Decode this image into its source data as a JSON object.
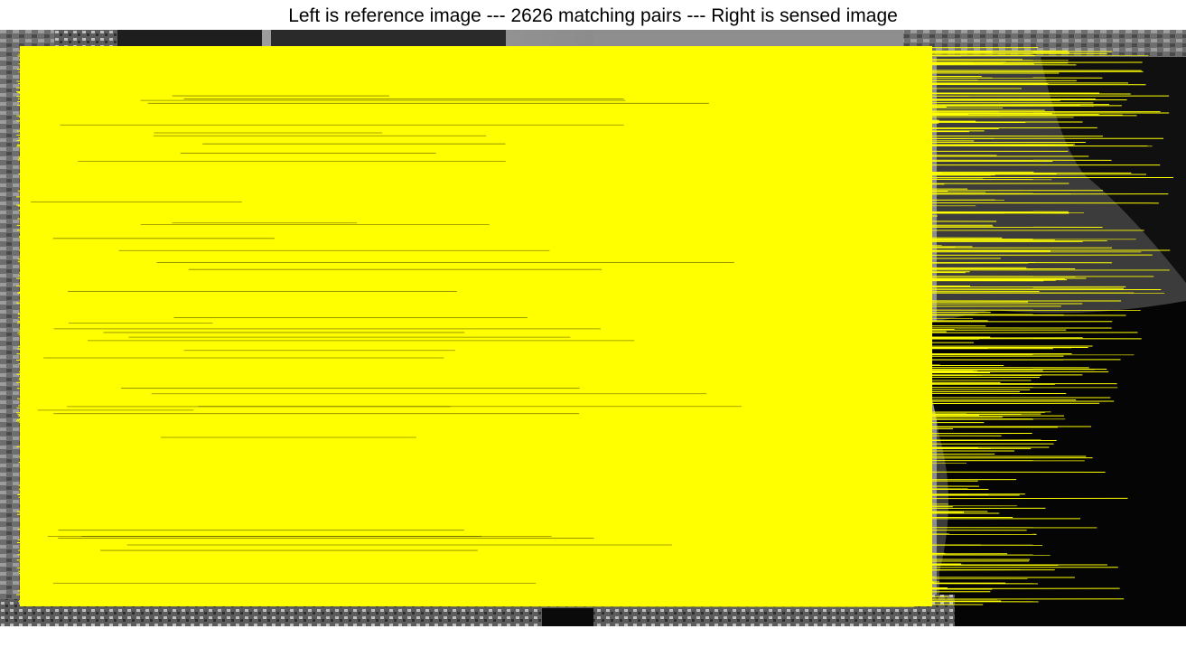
{
  "figure": {
    "title": "Left is reference image --- 2626 matching pairs --- Right is sensed image"
  },
  "images": {
    "reference": {
      "side": "left",
      "tone": "grayscale"
    },
    "sensed": {
      "side": "right",
      "tone": "grayscale"
    }
  },
  "matches": {
    "pairs": 2626,
    "line_color": "#ffff00"
  },
  "colors": {
    "background": "#ffffff",
    "title_text": "#000000",
    "match_lines": "#ffff00",
    "image_dark": "#050505",
    "image_mid": "#8a8a8a",
    "image_light": "#e6e6e6"
  }
}
